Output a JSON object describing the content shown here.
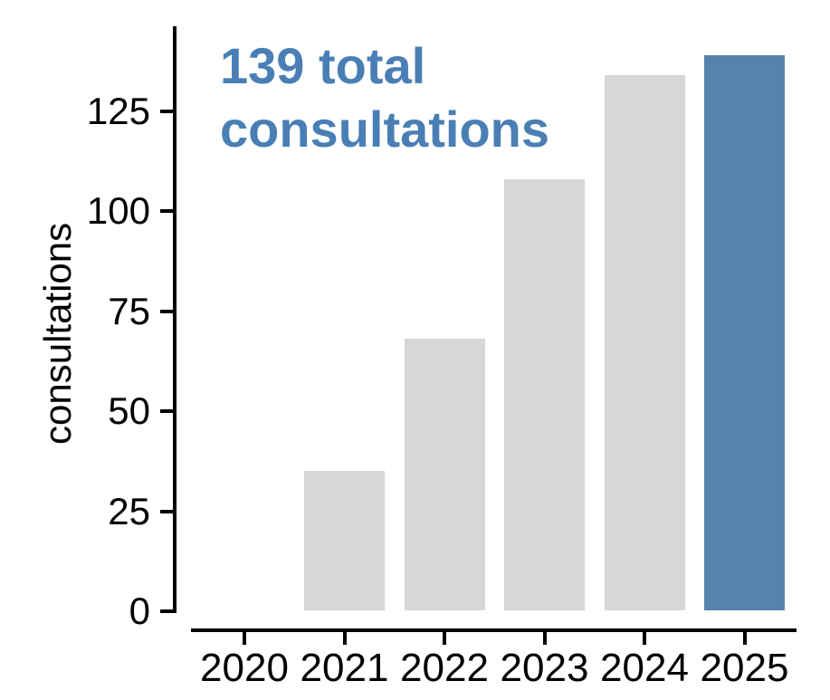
{
  "chart_data": {
    "type": "bar",
    "categories": [
      "2020",
      "2021",
      "2022",
      "2023",
      "2024",
      "2025"
    ],
    "values": [
      0,
      35,
      68,
      108,
      134,
      139
    ],
    "title": "139 total\nconsultations",
    "xlabel": "",
    "ylabel": "consultations",
    "yticks": [
      0,
      25,
      50,
      75,
      100,
      125
    ],
    "ylim": [
      0,
      146
    ],
    "grid": false,
    "legend": null,
    "colors": {
      "bar_default": "#d5d7d8",
      "bar_highlight": "#5683ac",
      "annotation_text": "#4a7fb5",
      "axis": "#000000"
    },
    "highlight_index": 5
  }
}
